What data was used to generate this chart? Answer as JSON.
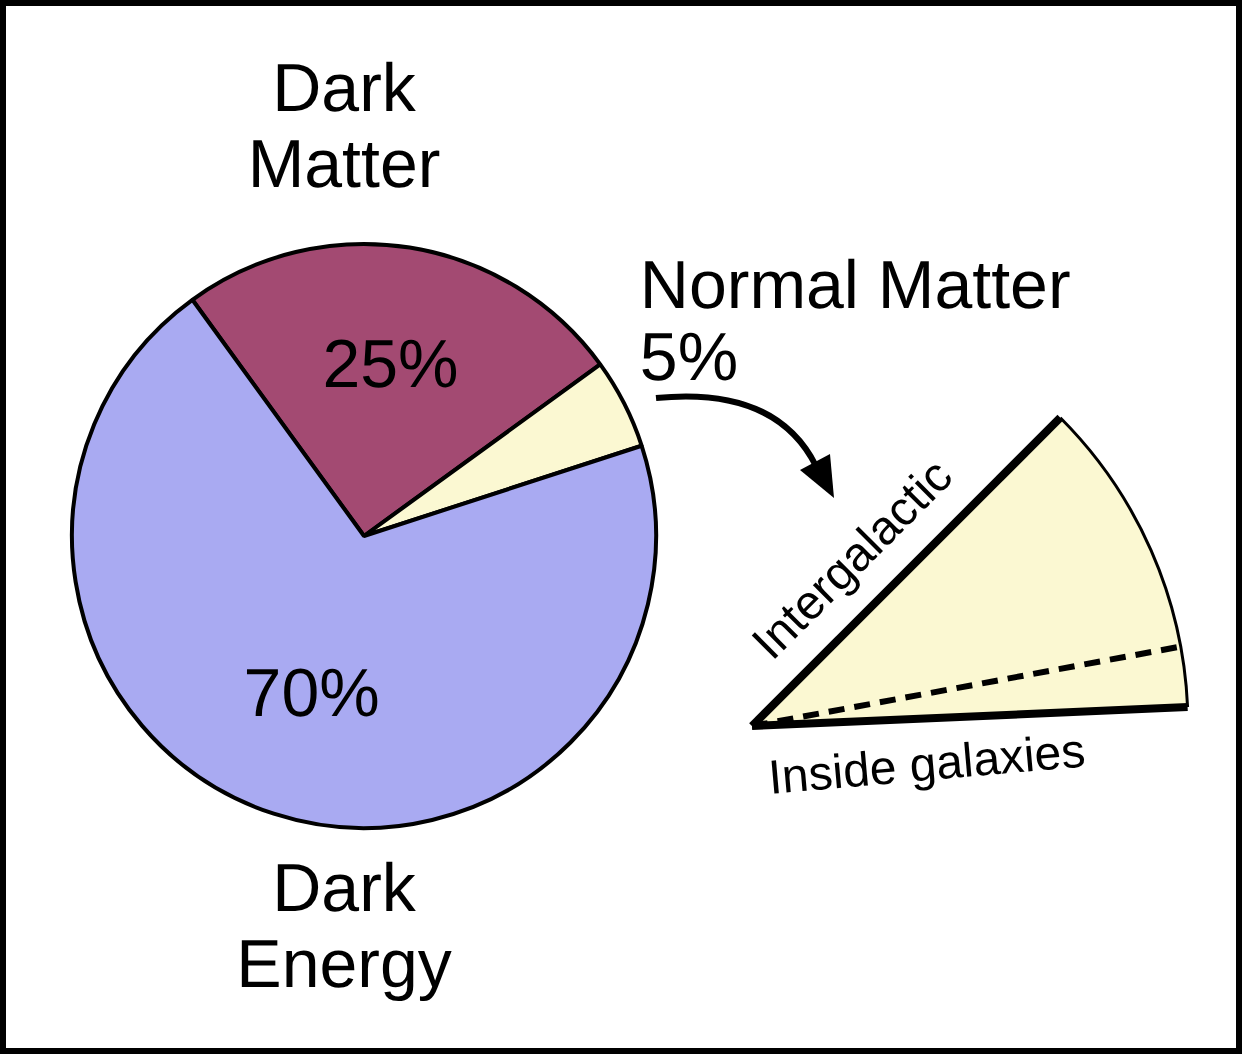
{
  "chart_data": {
    "type": "pie",
    "categories": [
      "Dark Matter",
      "Normal Matter",
      "Dark Energy"
    ],
    "values": [
      25,
      5,
      70
    ],
    "colors": [
      "#a34a72",
      "#fbf8d2",
      "#a9aaf2"
    ],
    "value_labels": [
      "25%",
      "5%",
      "70%"
    ],
    "annotations": [
      "Intergalactic",
      "Inside galaxies"
    ],
    "legend": false
  }
}
